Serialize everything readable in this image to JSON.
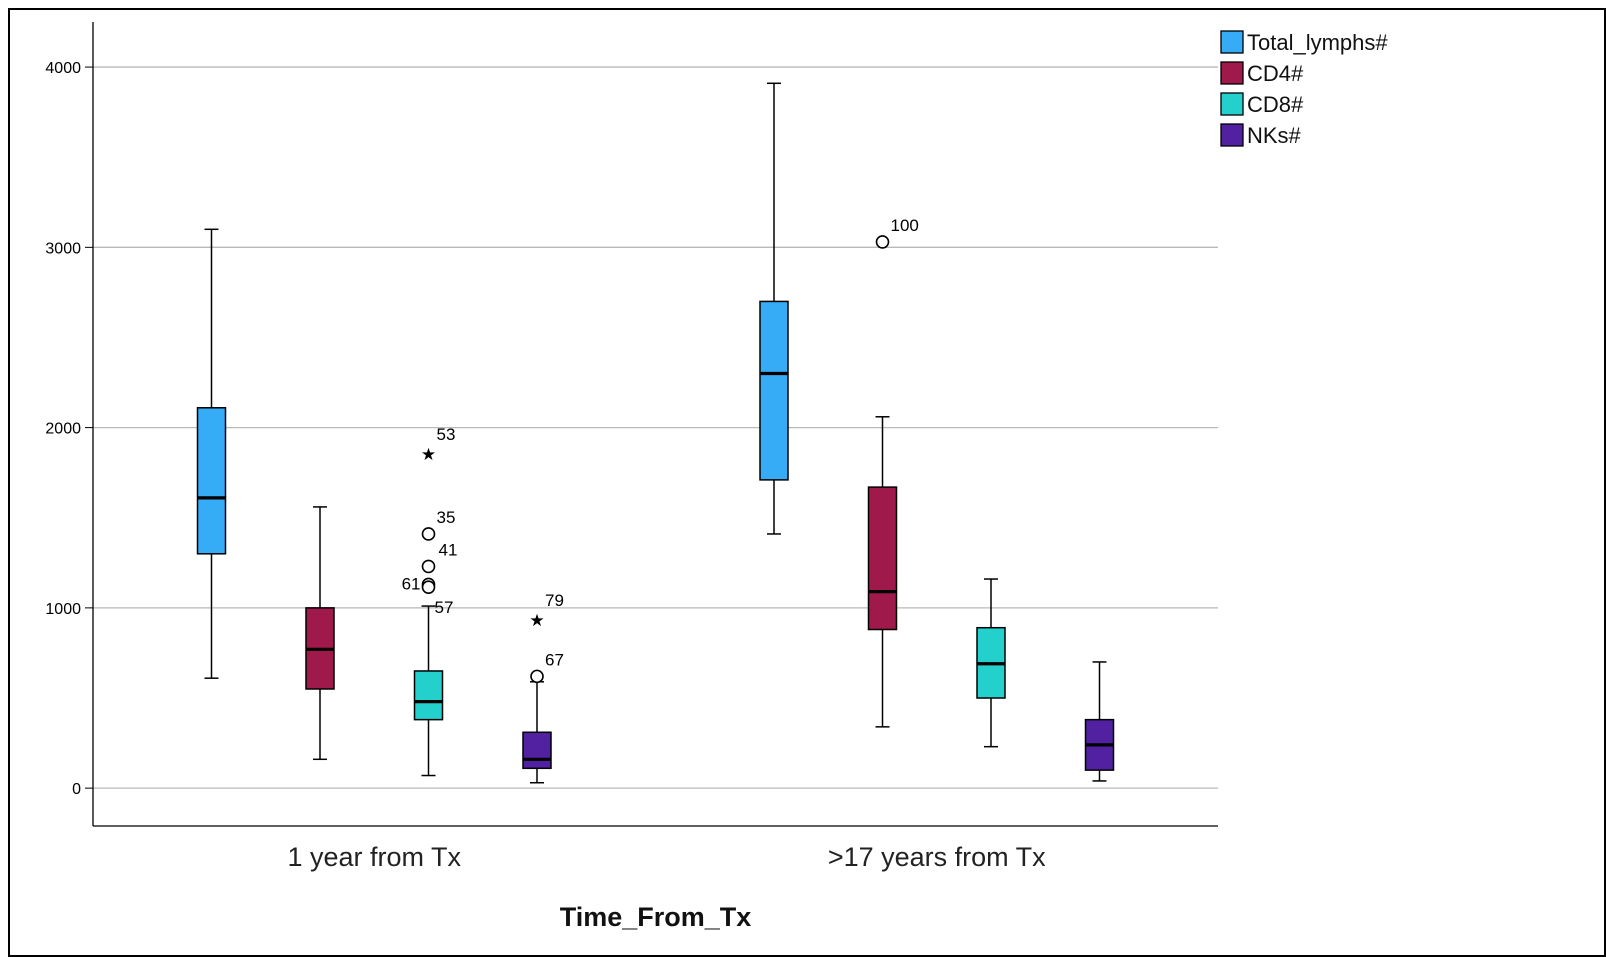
{
  "chart_data": {
    "type": "boxplot",
    "xlabel": "Time_From_Tx",
    "ylabel": "",
    "ylim": [
      -210,
      4250
    ],
    "yticks": [
      0,
      1000,
      2000,
      3000,
      4000
    ],
    "grid": "horizontal",
    "legend_position": "top-right",
    "categories": [
      "1 year from Tx",
      ">17 years from Tx"
    ],
    "series": [
      {
        "name": "Total_lymphs#",
        "color": "#35ACF5",
        "boxes": [
          {
            "whisker_low": 610,
            "q1": 1300,
            "median": 1610,
            "q3": 2110,
            "whisker_high": 3100
          },
          {
            "whisker_low": 1410,
            "q1": 1710,
            "median": 2300,
            "q3": 2700,
            "whisker_high": 3910
          }
        ]
      },
      {
        "name": "CD4#",
        "color": "#A0194B",
        "boxes": [
          {
            "whisker_low": 160,
            "q1": 550,
            "median": 770,
            "q3": 1000,
            "whisker_high": 1560
          },
          {
            "whisker_low": 340,
            "q1": 880,
            "median": 1090,
            "q3": 1670,
            "whisker_high": 2060
          }
        ]
      },
      {
        "name": "CD8#",
        "color": "#23D0CC",
        "boxes": [
          {
            "whisker_low": 70,
            "q1": 380,
            "median": 480,
            "q3": 650,
            "whisker_high": 1010
          },
          {
            "whisker_low": 230,
            "q1": 500,
            "median": 690,
            "q3": 890,
            "whisker_high": 1160
          }
        ]
      },
      {
        "name": "NKs#",
        "color": "#5221A1",
        "boxes": [
          {
            "whisker_low": 30,
            "q1": 110,
            "median": 160,
            "q3": 310,
            "whisker_high": 590
          },
          {
            "whisker_low": 40,
            "q1": 100,
            "median": 240,
            "q3": 380,
            "whisker_high": 700
          }
        ]
      }
    ],
    "outliers": [
      {
        "category": 0,
        "series": 2,
        "value": 1870,
        "marker": "star",
        "label": "53"
      },
      {
        "category": 0,
        "series": 2,
        "value": 1410,
        "marker": "circle",
        "label": "35"
      },
      {
        "category": 0,
        "series": 2,
        "value": 1230,
        "marker": "circle",
        "label": "41"
      },
      {
        "category": 0,
        "series": 2,
        "value": 1130,
        "marker": "circle",
        "label": "61"
      },
      {
        "category": 0,
        "series": 2,
        "value": 1115,
        "marker": "circle",
        "label": ""
      },
      {
        "category": 0,
        "series": 2,
        "value": 1010,
        "marker": "none",
        "label": "57"
      },
      {
        "category": 0,
        "series": 3,
        "value": 950,
        "marker": "star",
        "label": "79"
      },
      {
        "category": 0,
        "series": 3,
        "value": 620,
        "marker": "circle",
        "label": "67"
      },
      {
        "category": 1,
        "series": 1,
        "value": 3030,
        "marker": "circle",
        "label": "100"
      }
    ]
  }
}
